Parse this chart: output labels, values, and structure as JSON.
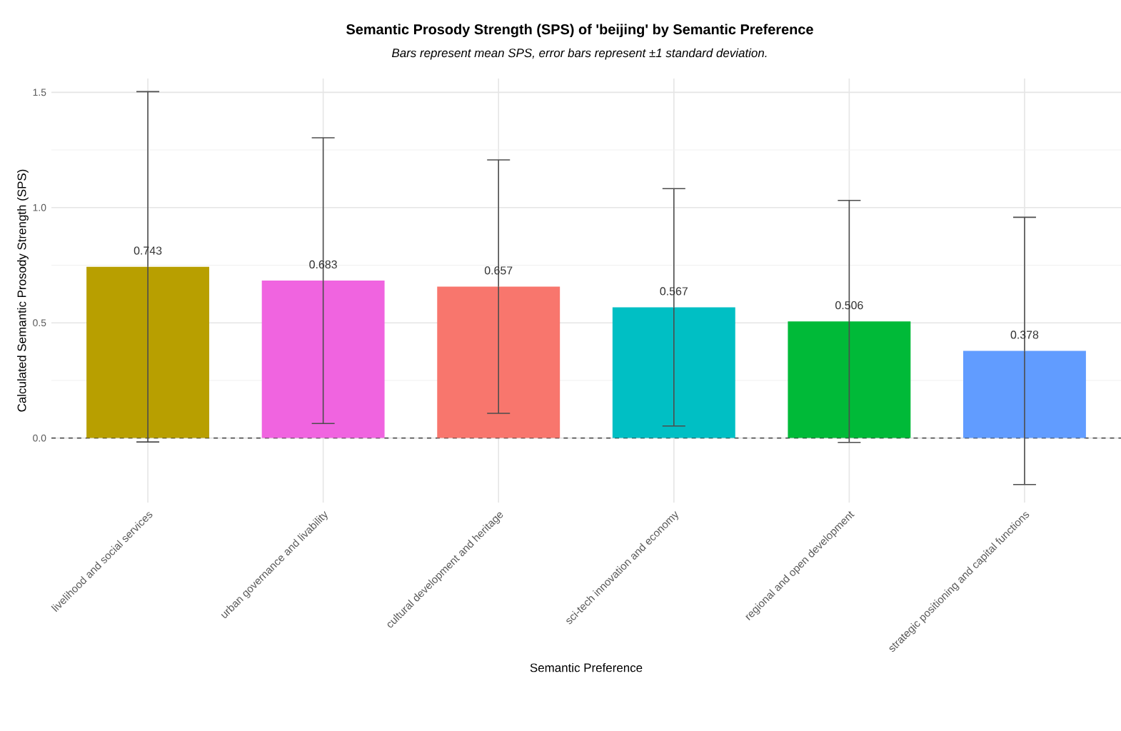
{
  "chart_data": {
    "type": "bar",
    "title": "Semantic Prosody Strength (SPS) of 'beijing' by Semantic Preference",
    "subtitle": "Bars represent mean SPS, error bars represent ±1 standard deviation.",
    "xlabel": "Semantic Preference",
    "ylabel": "Calculated Semantic Prosody Strength (SPS)",
    "categories": [
      "livelihood and social services",
      "urban governance and livability",
      "cultural development and heritage",
      "sci-tech innovation and economy",
      "regional and open development",
      "strategic positioning and capital functions"
    ],
    "values": [
      0.743,
      0.683,
      0.657,
      0.567,
      0.506,
      0.378
    ],
    "errors": [
      0.76,
      0.62,
      0.55,
      0.515,
      0.525,
      0.58
    ],
    "colors": [
      "#b89f00",
      "#f064e0",
      "#f8766d",
      "#00bfc4",
      "#00ba38",
      "#619cff"
    ],
    "ylim": [
      -0.28,
      1.56
    ],
    "yticks": [
      {
        "value": 0,
        "label": "0.0"
      },
      0.5,
      {
        "value": 1,
        "label": "1.0"
      },
      1.5
    ],
    "ref_lines": [
      {
        "axis": "y",
        "value": 0,
        "line_style": "dashed"
      }
    ],
    "data_labels": true,
    "grid": true
  }
}
